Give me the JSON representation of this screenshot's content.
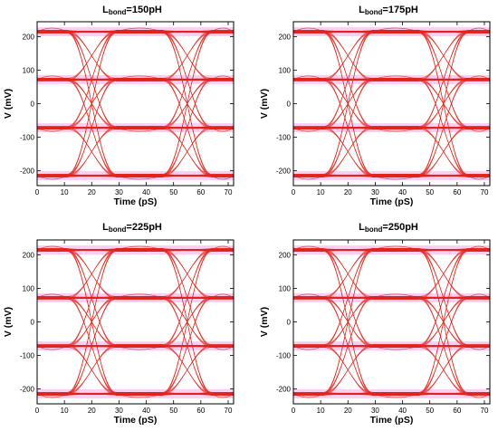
{
  "charts": [
    {
      "title_main": "L",
      "title_sub": "bond",
      "title_value": "=150pH"
    },
    {
      "title_main": "L",
      "title_sub": "bond",
      "title_value": "=175pH"
    },
    {
      "title_main": "L",
      "title_sub": "bond",
      "title_value": "=225pH"
    },
    {
      "title_main": "L",
      "title_sub": "bond",
      "title_value": "=250pH"
    }
  ],
  "chart_data": [
    {
      "type": "line",
      "title": "Lbond=150pH",
      "xlabel": "Time (pS)",
      "ylabel": "V (mV)",
      "xlim": [
        0,
        72
      ],
      "ylim": [
        -245,
        245
      ],
      "xticks": [
        0,
        10,
        20,
        30,
        40,
        50,
        60,
        70
      ],
      "yticks": [
        -200,
        -100,
        0,
        100,
        200
      ],
      "signal_levels_mV": [
        -215,
        -72,
        72,
        215
      ],
      "transition_centers_pS": [
        20,
        55
      ],
      "grid": false,
      "colors": {
        "trace": "#e0241b",
        "trace_alt": "#2a8a1e",
        "noise_halo": "#f24fd0"
      }
    },
    {
      "type": "line",
      "title": "Lbond=175pH",
      "xlabel": "Time (pS)",
      "ylabel": "V (mV)",
      "xlim": [
        0,
        72
      ],
      "ylim": [
        -245,
        245
      ],
      "xticks": [
        0,
        10,
        20,
        30,
        40,
        50,
        60,
        70
      ],
      "yticks": [
        -200,
        -100,
        0,
        100,
        200
      ],
      "signal_levels_mV": [
        -215,
        -72,
        72,
        215
      ],
      "transition_centers_pS": [
        20,
        55
      ],
      "grid": false,
      "colors": {
        "trace": "#e0241b",
        "trace_alt": "#2a8a1e",
        "noise_halo": "#f24fd0"
      }
    },
    {
      "type": "line",
      "title": "Lbond=225pH",
      "xlabel": "Time (pS)",
      "ylabel": "V (mV)",
      "xlim": [
        0,
        72
      ],
      "ylim": [
        -245,
        245
      ],
      "xticks": [
        0,
        10,
        20,
        30,
        40,
        50,
        60,
        70
      ],
      "yticks": [
        -200,
        -100,
        0,
        100,
        200
      ],
      "signal_levels_mV": [
        -215,
        -72,
        72,
        215
      ],
      "transition_centers_pS": [
        20,
        55
      ],
      "grid": false,
      "colors": {
        "trace": "#e0241b",
        "trace_alt": "#2a8a1e",
        "noise_halo": "#f24fd0"
      }
    },
    {
      "type": "line",
      "title": "Lbond=250pH",
      "xlabel": "Time (pS)",
      "ylabel": "V (mV)",
      "xlim": [
        0,
        72
      ],
      "ylim": [
        -245,
        245
      ],
      "xticks": [
        0,
        10,
        20,
        30,
        40,
        50,
        60,
        70
      ],
      "yticks": [
        -200,
        -100,
        0,
        100,
        200
      ],
      "signal_levels_mV": [
        -215,
        -72,
        72,
        215
      ],
      "transition_centers_pS": [
        20,
        55
      ],
      "grid": false,
      "colors": {
        "trace": "#e0241b",
        "trace_alt": "#2a8a1e",
        "noise_halo": "#f24fd0"
      }
    }
  ]
}
